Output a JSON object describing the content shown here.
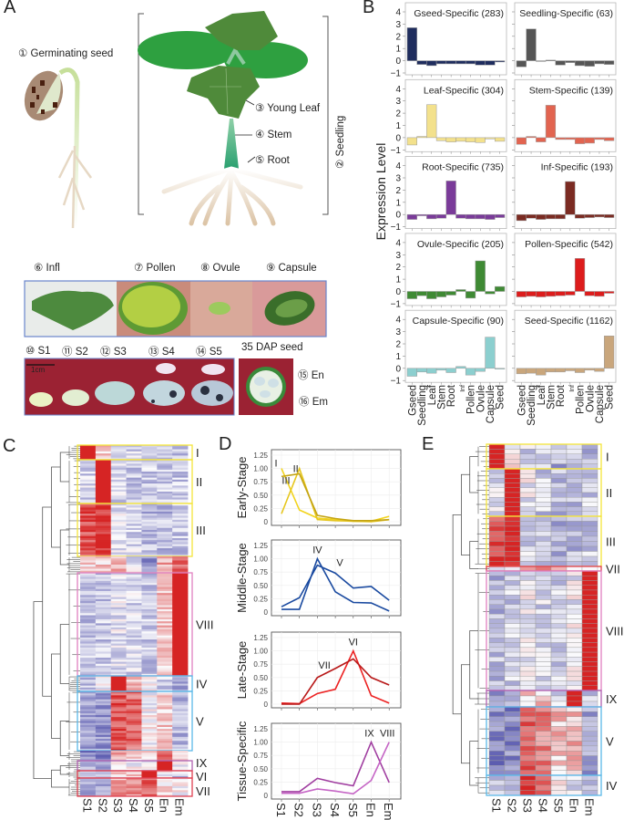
{
  "panels": {
    "a": "A",
    "b": "B",
    "c": "C",
    "d": "D",
    "e": "E"
  },
  "panel_a": {
    "germinating_seed": "① Germinating seed",
    "young_leaf": "③ Young Leaf",
    "stem": "④ Stem",
    "root": "⑤ Root",
    "seedling": "② Seedling",
    "infl": "⑥ Infl",
    "pollen": "⑦ Pollen",
    "ovule": "⑧ Ovule",
    "capsule": "⑨ Capsule",
    "s1": "⑩ S1",
    "s2": "⑪ S2",
    "s3": "⑫ S3",
    "s4": "⑬ S4",
    "s5": "⑭ S5",
    "dap_seed": "35 DAP seed",
    "scale_bar": "1cm",
    "en": "⑮ En",
    "em": "⑯ Em"
  },
  "chart_data": [
    {
      "id": "B",
      "type": "bar",
      "ylabel": "Expression Level",
      "ylim": [
        -1,
        4
      ],
      "yticks": [
        "4",
        "3",
        "2",
        "1",
        "0",
        "−1"
      ],
      "categories": [
        "Gseed",
        "Seedling",
        "Leaf",
        "Stem",
        "Root",
        "Inf",
        "Pollen",
        "Ovule",
        "Capsule",
        "Seed"
      ],
      "series": [
        {
          "name": "Gseed-Specific (283)",
          "color": "#1f2d5e",
          "values": [
            2.7,
            -0.3,
            -0.4,
            -0.25,
            -0.25,
            -0.25,
            -0.25,
            -0.35,
            -0.35,
            -0.1
          ]
        },
        {
          "name": "Seedling-Specific (63)",
          "color": "#565656",
          "values": [
            -0.5,
            2.6,
            -0.05,
            0.05,
            -0.35,
            -0.15,
            -0.4,
            -0.45,
            -0.25,
            -0.3
          ]
        },
        {
          "name": "Leaf-Specific (304)",
          "color": "#f3e18c",
          "values": [
            -0.6,
            0.1,
            2.7,
            -0.25,
            -0.35,
            -0.3,
            -0.35,
            -0.4,
            -0.1,
            -0.3
          ]
        },
        {
          "name": "Stem-Specific (139)",
          "color": "#e26450",
          "values": [
            -0.55,
            0.1,
            -0.35,
            2.65,
            -0.15,
            -0.15,
            -0.5,
            -0.45,
            -0.15,
            -0.25
          ]
        },
        {
          "name": "Root-Specific (735)",
          "color": "#7a3b99",
          "values": [
            -0.4,
            -0.1,
            -0.35,
            -0.3,
            2.75,
            -0.3,
            -0.35,
            -0.35,
            -0.4,
            -0.25
          ]
        },
        {
          "name": "Inf-Specific (193)",
          "color": "#7b2b22",
          "values": [
            -0.5,
            -0.3,
            -0.4,
            -0.35,
            -0.35,
            2.7,
            -0.3,
            -0.25,
            -0.2,
            -0.25
          ]
        },
        {
          "name": "Ovule-Specific (205)",
          "color": "#3f8a34",
          "values": [
            -0.6,
            -0.35,
            -0.6,
            -0.45,
            -0.3,
            0.15,
            -0.55,
            2.5,
            -0.2,
            0.4
          ]
        },
        {
          "name": "Pollen-Specific (542)",
          "color": "#dd1c1c",
          "values": [
            -0.45,
            -0.4,
            -0.45,
            -0.4,
            -0.35,
            -0.3,
            2.7,
            -0.35,
            -0.4,
            -0.15
          ]
        },
        {
          "name": "Capsule-Specific (90)",
          "color": "#8ccfcf",
          "values": [
            -0.65,
            -0.3,
            -0.4,
            -0.15,
            -0.35,
            0.15,
            -0.55,
            -0.25,
            2.55,
            -0.05
          ]
        },
        {
          "name": "Seed-Specific (1162)",
          "color": "#c9a67c",
          "values": [
            -0.45,
            -0.4,
            -0.55,
            -0.3,
            -0.3,
            -0.2,
            -0.35,
            -0.15,
            -0.25,
            2.65
          ]
        }
      ]
    },
    {
      "id": "C",
      "type": "heatmap",
      "columns": [
        "S1",
        "S2",
        "S3",
        "S4",
        "S5",
        "En",
        "Em"
      ],
      "clusters": [
        {
          "label": "I",
          "color": "#f3e43a",
          "profile": [
            2,
            0.3,
            -0.3,
            -0.3,
            -0.5,
            -0.4,
            -0.5
          ]
        },
        {
          "label": "II",
          "color": "#f3e43a",
          "profile": [
            -0.3,
            2,
            -0.3,
            -0.4,
            -0.4,
            -0.4,
            -0.4
          ]
        },
        {
          "label": "III",
          "color": "#f3e43a",
          "profile": [
            1.2,
            1.4,
            -0.2,
            -0.3,
            -0.5,
            -0.5,
            -0.4
          ]
        },
        {
          "label": "",
          "color": "",
          "profile": [
            0.3,
            0.3,
            0.5,
            -0.2,
            -0.8,
            0.6,
            1.0
          ]
        },
        {
          "label": "VIII",
          "color": "#e080c0",
          "profile": [
            -0.4,
            -0.4,
            -0.2,
            -0.3,
            -0.4,
            0.4,
            2
          ]
        },
        {
          "label": "IV",
          "color": "#5ab8e8",
          "profile": [
            -0.4,
            0,
            1.8,
            0.5,
            0,
            -0.3,
            -0.6
          ]
        },
        {
          "label": "V",
          "color": "#5ab8e8",
          "profile": [
            -0.8,
            -0.8,
            1.2,
            1.0,
            0,
            0.3,
            -0.5
          ]
        },
        {
          "label": "",
          "color": "",
          "profile": [
            -0.9,
            -0.9,
            0.5,
            0.3,
            0.2,
            1.0,
            0.2
          ]
        },
        {
          "label": "IX",
          "color": "#b060b0",
          "profile": [
            -0.7,
            -0.7,
            0.2,
            0,
            0.1,
            2,
            -0.2
          ]
        },
        {
          "label": "VI",
          "color": "#e04050",
          "profile": [
            -0.6,
            -0.6,
            0.3,
            0.4,
            2,
            0,
            -0.4
          ]
        },
        {
          "label": "VII",
          "color": "#e04050",
          "profile": [
            -0.7,
            -0.7,
            0.6,
            0.8,
            1,
            0.2,
            0
          ]
        }
      ]
    },
    {
      "id": "D",
      "type": "line",
      "x": [
        "S1",
        "S2",
        "S3",
        "S4",
        "S5",
        "En",
        "Em"
      ],
      "ylim": [
        0,
        1.25
      ],
      "yticks": [
        "1.25",
        "1.00",
        "0.75",
        "0.50",
        "0.25",
        "0"
      ],
      "grid": true,
      "plots": [
        {
          "ylabel": "Early-Stage",
          "series": [
            {
              "name": "I",
              "color": "#f2d41e",
              "values": [
                1.0,
                0.22,
                0.07,
                0.04,
                0.01,
                0.01,
                0.1
              ]
            },
            {
              "name": "II",
              "color": "#e6c61c",
              "values": [
                0.15,
                1.0,
                0.04,
                0.02,
                0.01,
                0.0,
                0.04
              ]
            },
            {
              "name": "III",
              "color": "#c4a414",
              "values": [
                0.85,
                0.9,
                0.12,
                0.06,
                0.02,
                0.02,
                0.04
              ]
            }
          ]
        },
        {
          "ylabel": "Middle-Stage",
          "series": [
            {
              "name": "IV",
              "color": "#1a4aa0",
              "values": [
                0.05,
                0.05,
                1.0,
                0.38,
                0.18,
                0.17,
                0.02
              ]
            },
            {
              "name": "V",
              "color": "#1a4aa0",
              "values": [
                0.1,
                0.27,
                0.88,
                0.73,
                0.45,
                0.48,
                0.22
              ]
            }
          ]
        },
        {
          "ylabel": "Late-Stage",
          "series": [
            {
              "name": "VI",
              "color": "#ec2222",
              "values": [
                0.02,
                0.01,
                0.2,
                0.28,
                1.0,
                0.16,
                0.02
              ]
            },
            {
              "name": "VII",
              "color": "#b81818",
              "values": [
                0.0,
                0.0,
                0.5,
                0.67,
                0.85,
                0.5,
                0.36
              ]
            }
          ]
        },
        {
          "ylabel": "Tissue-Specific",
          "series": [
            {
              "name": "IX",
              "color": "#a03ea0",
              "values": [
                0.07,
                0.07,
                0.32,
                0.24,
                0.18,
                1.0,
                0.24
              ]
            },
            {
              "name": "VIII",
              "color": "#c565c5",
              "values": [
                0.04,
                0.04,
                0.12,
                0.08,
                0.03,
                0.28,
                1.0
              ]
            }
          ]
        }
      ]
    },
    {
      "id": "E",
      "type": "heatmap",
      "columns": [
        "S1",
        "S2",
        "S3",
        "S4",
        "S5",
        "En",
        "Em"
      ],
      "clusters": [
        {
          "label": "I",
          "color": "#f3e43a",
          "profile": [
            2,
            0.2,
            -0.3,
            -0.3,
            -0.6,
            -0.5,
            -0.6
          ]
        },
        {
          "label": "II",
          "color": "#f3e43a",
          "profile": [
            -0.3,
            2,
            -0.1,
            -0.4,
            -0.5,
            -0.5,
            -0.4
          ]
        },
        {
          "label": "III",
          "color": "#f3e43a",
          "profile": [
            1.3,
            1.6,
            -0.3,
            -0.5,
            -0.6,
            -0.5,
            -0.4
          ]
        },
        {
          "label": "VII",
          "color": "#e04050",
          "profile": [
            -0.6,
            -0.5,
            0.8,
            1.2,
            0.5,
            0.3,
            0.2
          ]
        },
        {
          "label": "VIII",
          "color": "#e080c0",
          "profile": [
            -0.5,
            -0.4,
            -0.1,
            -0.3,
            -0.4,
            -0.1,
            2
          ]
        },
        {
          "label": "IX",
          "color": "#b060b0",
          "profile": [
            -0.7,
            -0.7,
            0.3,
            0.3,
            -0.2,
            1.9,
            -0.3
          ]
        },
        {
          "label": "V",
          "color": "#5ab8e8",
          "profile": [
            -0.9,
            -0.9,
            1.0,
            0.8,
            0.4,
            0.5,
            -0.7
          ]
        },
        {
          "label": "IV",
          "color": "#5ab8e8",
          "profile": [
            -0.5,
            -0.4,
            1.6,
            0.9,
            0.1,
            -0.3,
            -0.6
          ]
        }
      ]
    }
  ]
}
